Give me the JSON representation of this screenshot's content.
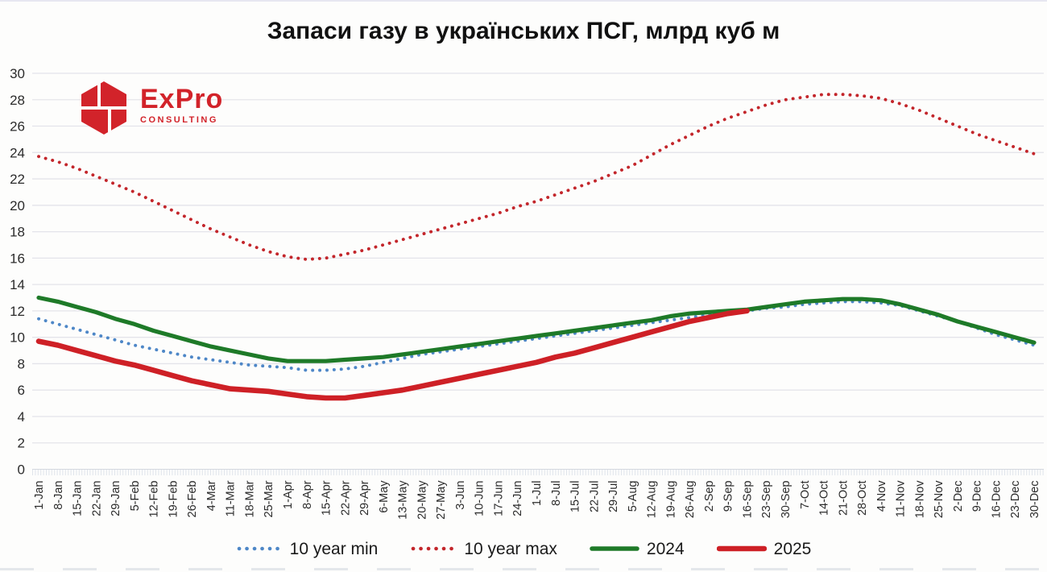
{
  "title": "Запаси газу в українських ПСГ, млрд куб м",
  "logo": {
    "name": "ExPro",
    "subtitle": "CONSULTING",
    "color": "#d2232a"
  },
  "colors": {
    "min10": "#4e87c7",
    "max10": "#c3262b",
    "y2024": "#1e7a28",
    "y2025": "#ce2026",
    "gridline": "#e4e4ea",
    "axis_text": "#2b2b2b",
    "title_text": "#111111"
  },
  "chart_data": {
    "type": "line",
    "title": "Запаси газу в українських ПСГ, млрд куб м",
    "xlabel": "",
    "ylabel": "",
    "ylim": [
      0,
      30
    ],
    "ytick_step": 2,
    "grid": true,
    "legend_position": "bottom",
    "categories": [
      "1-Jan",
      "8-Jan",
      "15-Jan",
      "22-Jan",
      "29-Jan",
      "5-Feb",
      "12-Feb",
      "19-Feb",
      "26-Feb",
      "4-Mar",
      "11-Mar",
      "18-Mar",
      "25-Mar",
      "1-Apr",
      "8-Apr",
      "15-Apr",
      "22-Apr",
      "29-Apr",
      "6-May",
      "13-May",
      "20-May",
      "27-May",
      "3-Jun",
      "10-Jun",
      "17-Jun",
      "24-Jun",
      "1-Jul",
      "8-Jul",
      "15-Jul",
      "22-Jul",
      "29-Jul",
      "5-Aug",
      "12-Aug",
      "19-Aug",
      "26-Aug",
      "2-Sep",
      "9-Sep",
      "16-Sep",
      "23-Sep",
      "30-Sep",
      "7-Oct",
      "14-Oct",
      "21-Oct",
      "28-Oct",
      "4-Nov",
      "11-Nov",
      "18-Nov",
      "25-Nov",
      "2-Dec",
      "9-Dec",
      "16-Dec",
      "23-Dec",
      "30-Dec"
    ],
    "series": [
      {
        "name": "10 year min",
        "style": "dotted",
        "color": "#4e87c7",
        "values": [
          11.4,
          11.0,
          10.6,
          10.2,
          9.8,
          9.4,
          9.1,
          8.8,
          8.5,
          8.3,
          8.1,
          7.9,
          7.8,
          7.7,
          7.5,
          7.5,
          7.6,
          7.8,
          8.1,
          8.4,
          8.7,
          8.9,
          9.1,
          9.3,
          9.5,
          9.7,
          9.9,
          10.1,
          10.3,
          10.5,
          10.7,
          10.9,
          11.1,
          11.3,
          11.5,
          11.7,
          11.9,
          12.0,
          12.2,
          12.3,
          12.5,
          12.6,
          12.7,
          12.7,
          12.6,
          12.4,
          12.0,
          11.6,
          11.2,
          10.7,
          10.2,
          9.8,
          9.4
        ]
      },
      {
        "name": "10 year max",
        "style": "dotted",
        "color": "#c3262b",
        "values": [
          23.7,
          23.3,
          22.8,
          22.2,
          21.6,
          21.0,
          20.3,
          19.6,
          18.9,
          18.2,
          17.6,
          17.0,
          16.5,
          16.1,
          15.9,
          16.0,
          16.3,
          16.6,
          17.0,
          17.4,
          17.8,
          18.2,
          18.6,
          19.0,
          19.4,
          19.9,
          20.3,
          20.8,
          21.3,
          21.8,
          22.4,
          23.0,
          23.8,
          24.6,
          25.3,
          26.0,
          26.6,
          27.1,
          27.6,
          28.0,
          28.2,
          28.4,
          28.4,
          28.3,
          28.1,
          27.7,
          27.2,
          26.6,
          26.0,
          25.4,
          24.9,
          24.4,
          23.9
        ]
      },
      {
        "name": "2024",
        "style": "solid",
        "color": "#1e7a28",
        "values": [
          13.0,
          12.7,
          12.3,
          11.9,
          11.4,
          11.0,
          10.5,
          10.1,
          9.7,
          9.3,
          9.0,
          8.7,
          8.4,
          8.2,
          8.2,
          8.2,
          8.3,
          8.4,
          8.5,
          8.7,
          8.9,
          9.1,
          9.3,
          9.5,
          9.7,
          9.9,
          10.1,
          10.3,
          10.5,
          10.7,
          10.9,
          11.1,
          11.3,
          11.6,
          11.8,
          11.9,
          12.0,
          12.1,
          12.3,
          12.5,
          12.7,
          12.8,
          12.9,
          12.9,
          12.8,
          12.5,
          12.1,
          11.7,
          11.2,
          10.8,
          10.4,
          10.0,
          9.6
        ]
      },
      {
        "name": "2025",
        "style": "solid",
        "color": "#ce2026",
        "values": [
          9.7,
          9.4,
          9.0,
          8.6,
          8.2,
          7.9,
          7.5,
          7.1,
          6.7,
          6.4,
          6.1,
          6.0,
          5.9,
          5.7,
          5.5,
          5.4,
          5.4,
          5.6,
          5.8,
          6.0,
          6.3,
          6.6,
          6.9,
          7.2,
          7.5,
          7.8,
          8.1,
          8.5,
          8.8,
          9.2,
          9.6,
          10.0,
          10.4,
          10.8,
          11.2,
          11.5,
          11.8,
          12.0
        ]
      }
    ]
  }
}
